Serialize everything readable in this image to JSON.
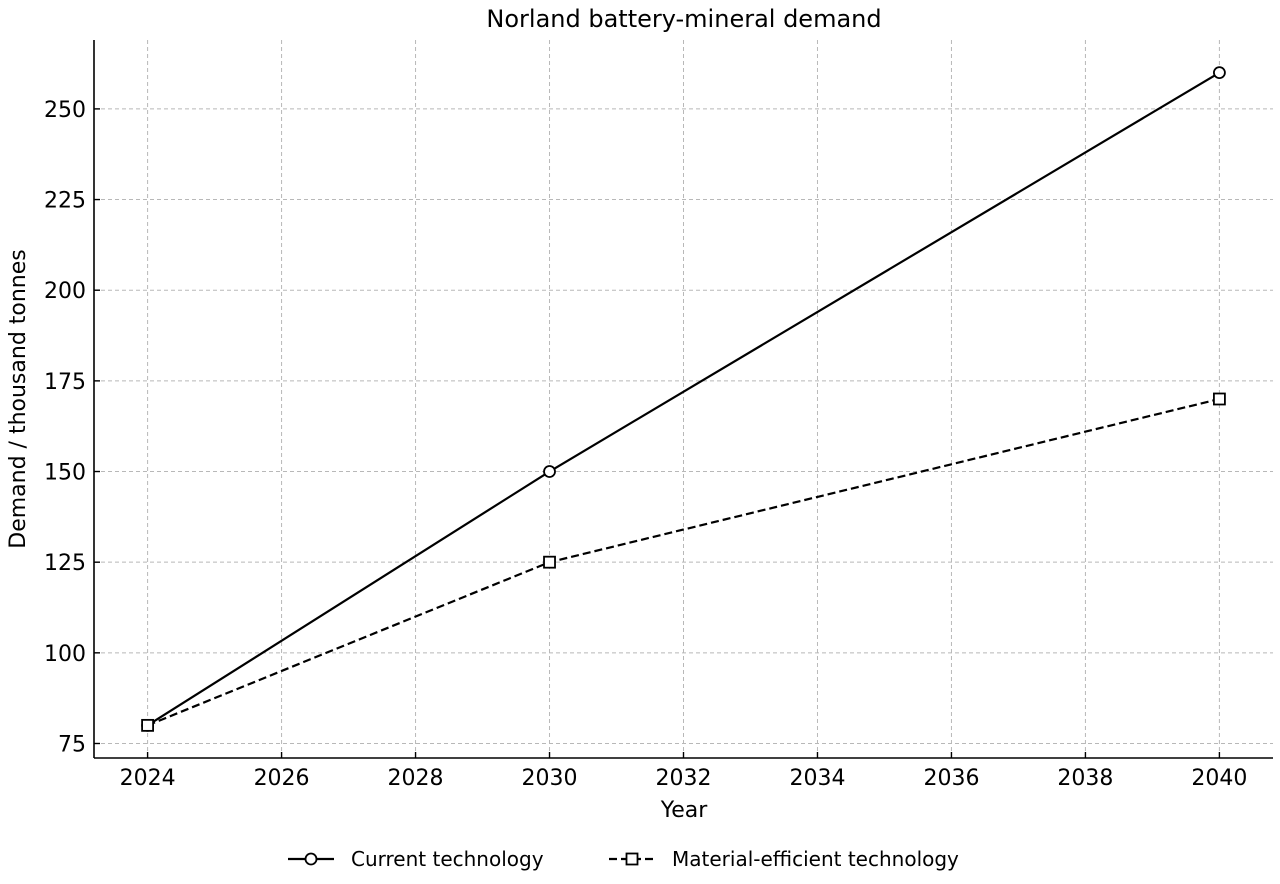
{
  "chart_data": {
    "type": "line",
    "title": "Norland battery-mineral demand",
    "xlabel": "Year",
    "ylabel": "Demand / thousand tonnes",
    "xlim": [
      2023.2,
      2040.8
    ],
    "ylim": [
      71,
      269
    ],
    "xticks": [
      2024,
      2026,
      2028,
      2030,
      2032,
      2034,
      2036,
      2038,
      2040
    ],
    "yticks": [
      75,
      100,
      125,
      150,
      175,
      200,
      225,
      250
    ],
    "grid": true,
    "legend": "bottom-center",
    "series": [
      {
        "name": "Current technology",
        "marker": "circle",
        "linestyle": "solid",
        "color": "#000000",
        "points": [
          {
            "x": 2024,
            "y": 80
          },
          {
            "x": 2030,
            "y": 150
          },
          {
            "x": 2040,
            "y": 260
          }
        ]
      },
      {
        "name": "Material-efficient technology",
        "marker": "square",
        "linestyle": "dashed",
        "color": "#000000",
        "points": [
          {
            "x": 2024,
            "y": 80
          },
          {
            "x": 2030,
            "y": 125
          },
          {
            "x": 2040,
            "y": 170
          }
        ]
      }
    ]
  }
}
